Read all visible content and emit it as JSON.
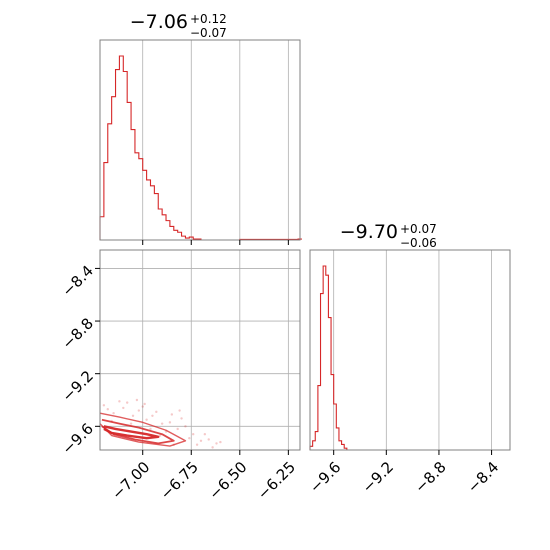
{
  "chart_data": [
    {
      "type": "histogram",
      "panel": "top-left",
      "title": {
        "value": "−7.06",
        "plus": "+0.12",
        "minus": "−0.07"
      },
      "xlim": [
        -7.22,
        -6.19
      ],
      "xticks": [
        -7.0,
        -6.75,
        -6.5,
        -6.25
      ],
      "grid": true,
      "color": "#d62728",
      "bin_width": 0.02,
      "bins": [
        {
          "x0": -7.22,
          "count": 0.12
        },
        {
          "x0": -7.2,
          "count": 0.4
        },
        {
          "x0": -7.18,
          "count": 0.6
        },
        {
          "x0": -7.16,
          "count": 0.74
        },
        {
          "x0": -7.14,
          "count": 0.88
        },
        {
          "x0": -7.12,
          "count": 0.95
        },
        {
          "x0": -7.1,
          "count": 0.87
        },
        {
          "x0": -7.08,
          "count": 0.71
        },
        {
          "x0": -7.06,
          "count": 0.57
        },
        {
          "x0": -7.04,
          "count": 0.45
        },
        {
          "x0": -7.02,
          "count": 0.42
        },
        {
          "x0": -7.0,
          "count": 0.36
        },
        {
          "x0": -6.98,
          "count": 0.31
        },
        {
          "x0": -6.96,
          "count": 0.28
        },
        {
          "x0": -6.94,
          "count": 0.24
        },
        {
          "x0": -6.92,
          "count": 0.16
        },
        {
          "x0": -6.9,
          "count": 0.13
        },
        {
          "x0": -6.88,
          "count": 0.1
        },
        {
          "x0": -6.86,
          "count": 0.07
        },
        {
          "x0": -6.84,
          "count": 0.05
        },
        {
          "x0": -6.82,
          "count": 0.04
        },
        {
          "x0": -6.8,
          "count": 0.02
        },
        {
          "x0": -6.78,
          "count": 0.01
        },
        {
          "x0": -6.76,
          "count": 0.015
        },
        {
          "x0": -6.74,
          "count": 0.005
        },
        {
          "x0": -6.72,
          "count": 0.005
        },
        {
          "x0": -6.7,
          "count": 0.0
        },
        {
          "x0": -6.5,
          "count": 0.003
        },
        {
          "x0": -6.2,
          "count": 0.005
        }
      ]
    },
    {
      "type": "scatter",
      "panel": "bottom-left",
      "xlim": [
        -7.22,
        -6.19
      ],
      "ylim": [
        -9.78,
        -8.26
      ],
      "xticks": [
        -7.0,
        -6.75,
        -6.5,
        -6.25
      ],
      "yticks": [
        -9.6,
        -9.2,
        -8.8,
        -8.4
      ],
      "grid": true,
      "color": "#d62728",
      "contours": [
        {
          "level": "inner",
          "points": [
            [
              -7.2,
              -9.6
            ],
            [
              -7.14,
              -9.62
            ],
            [
              -7.06,
              -9.64
            ],
            [
              -6.98,
              -9.66
            ],
            [
              -6.92,
              -9.68
            ],
            [
              -6.98,
              -9.69
            ],
            [
              -7.08,
              -9.67
            ],
            [
              -7.16,
              -9.65
            ],
            [
              -7.2,
              -9.62
            ]
          ]
        },
        {
          "level": "middle",
          "points": [
            [
              -7.21,
              -9.55
            ],
            [
              -7.12,
              -9.58
            ],
            [
              -7.02,
              -9.61
            ],
            [
              -6.9,
              -9.66
            ],
            [
              -6.84,
              -9.71
            ],
            [
              -6.92,
              -9.73
            ],
            [
              -7.04,
              -9.7
            ],
            [
              -7.15,
              -9.66
            ],
            [
              -7.21,
              -9.6
            ]
          ]
        },
        {
          "level": "outer",
          "points": [
            [
              -7.22,
              -9.5
            ],
            [
              -7.12,
              -9.53
            ],
            [
              -7.0,
              -9.57
            ],
            [
              -6.88,
              -9.63
            ],
            [
              -6.78,
              -9.71
            ],
            [
              -6.86,
              -9.75
            ],
            [
              -7.02,
              -9.72
            ],
            [
              -7.16,
              -9.67
            ],
            [
              -7.22,
              -9.58
            ]
          ]
        }
      ],
      "points": [
        [
          -7.18,
          -9.47
        ],
        [
          -7.15,
          -9.5
        ],
        [
          -7.1,
          -9.46
        ],
        [
          -7.05,
          -9.52
        ],
        [
          -7.02,
          -9.48
        ],
        [
          -6.98,
          -9.55
        ],
        [
          -6.95,
          -9.52
        ],
        [
          -6.9,
          -9.58
        ],
        [
          -6.86,
          -9.57
        ],
        [
          -6.82,
          -9.62
        ],
        [
          -6.78,
          -9.6
        ],
        [
          -6.74,
          -9.66
        ],
        [
          -6.7,
          -9.71
        ],
        [
          -6.66,
          -9.7
        ],
        [
          -6.62,
          -9.73
        ],
        [
          -6.85,
          -9.51
        ],
        [
          -6.8,
          -9.54
        ],
        [
          -7.08,
          -9.42
        ],
        [
          -7.12,
          -9.41
        ],
        [
          -7.0,
          -9.45
        ],
        [
          -6.93,
          -9.49
        ],
        [
          -6.88,
          -9.64
        ],
        [
          -6.76,
          -9.69
        ],
        [
          -6.72,
          -9.74
        ],
        [
          -7.2,
          -9.44
        ],
        [
          -7.16,
          -9.56
        ],
        [
          -7.06,
          -9.58
        ],
        [
          -6.96,
          -9.62
        ],
        [
          -6.91,
          -9.67
        ],
        [
          -6.68,
          -9.66
        ],
        [
          -6.64,
          -9.76
        ],
        [
          -6.6,
          -9.72
        ],
        [
          -6.84,
          -9.74
        ],
        [
          -7.03,
          -9.4
        ],
        [
          -6.99,
          -9.43
        ],
        [
          -6.81,
          -9.48
        ]
      ]
    },
    {
      "type": "histogram",
      "panel": "bottom-right",
      "title": {
        "value": "−9.70",
        "plus": "+0.07",
        "minus": "−0.06"
      },
      "xlim": [
        -9.78,
        -8.26
      ],
      "xticks": [
        -9.6,
        -9.2,
        -8.8,
        -8.4
      ],
      "grid": true,
      "color": "#d62728",
      "bin_width": 0.02,
      "bins": [
        {
          "x0": -9.78,
          "count": 0.02
        },
        {
          "x0": -9.76,
          "count": 0.05
        },
        {
          "x0": -9.74,
          "count": 0.1
        },
        {
          "x0": -9.72,
          "count": 0.35
        },
        {
          "x0": -9.7,
          "count": 0.85
        },
        {
          "x0": -9.68,
          "count": 1.0
        },
        {
          "x0": -9.66,
          "count": 0.95
        },
        {
          "x0": -9.64,
          "count": 0.72
        },
        {
          "x0": -9.62,
          "count": 0.41
        },
        {
          "x0": -9.6,
          "count": 0.25
        },
        {
          "x0": -9.58,
          "count": 0.12
        },
        {
          "x0": -9.56,
          "count": 0.05
        },
        {
          "x0": -9.54,
          "count": 0.03
        },
        {
          "x0": -9.52,
          "count": 0.01
        },
        {
          "x0": -9.5,
          "count": 0.0
        },
        {
          "x0": -9.0,
          "count": 0.0
        },
        {
          "x0": -8.28,
          "count": 0.0
        }
      ]
    }
  ]
}
